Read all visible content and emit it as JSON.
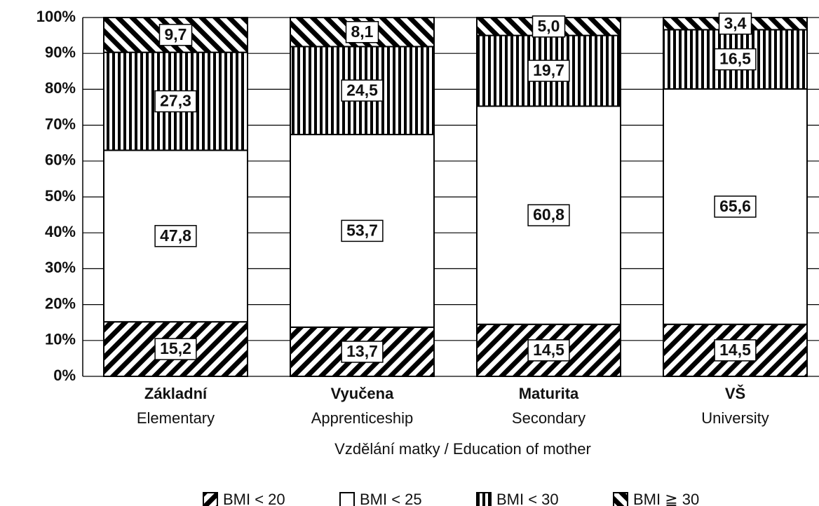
{
  "chart_data": {
    "type": "stacked-bar",
    "x_label": "Vzdělání matky / Education of mother",
    "categories": [
      "Základní",
      "Vyučena",
      "Maturita",
      "VŠ"
    ],
    "category_subtitles": [
      "Elementary",
      "Apprenticeship",
      "Secondary",
      "University"
    ],
    "series": [
      {
        "name": "BMI < 20",
        "pattern": "diagonal-down",
        "color": "#000000",
        "values": [
          15.2,
          13.7,
          14.5,
          14.5
        ],
        "value_labels": [
          "15,2",
          "13,7",
          "14,5",
          "14,5"
        ]
      },
      {
        "name": "BMI < 25",
        "pattern": "none",
        "color": "#ffffff",
        "values": [
          47.8,
          53.7,
          60.8,
          65.6
        ],
        "value_labels": [
          "47,8",
          "53,7",
          "60,8",
          "65,6"
        ]
      },
      {
        "name": "BMI < 30",
        "pattern": "vertical",
        "color": "#000000",
        "values": [
          27.3,
          24.5,
          19.7,
          16.5
        ],
        "value_labels": [
          "27,3",
          "24,5",
          "19,7",
          "16,5"
        ]
      },
      {
        "name": "BMI ≧ 30",
        "pattern": "diagonal-up",
        "color": "#000000",
        "values": [
          9.7,
          8.1,
          5.0,
          3.4
        ],
        "value_labels": [
          "9,7",
          "8,1",
          "5,0",
          "3,4"
        ]
      }
    ],
    "ylim": [
      0,
      100
    ],
    "yticks": [
      {
        "value": 0,
        "label": "0%"
      },
      {
        "value": 10,
        "label": "10%"
      },
      {
        "value": 20,
        "label": "20%"
      },
      {
        "value": 30,
        "label": "30%"
      },
      {
        "value": 40,
        "label": "40%"
      },
      {
        "value": 50,
        "label": "50%"
      },
      {
        "value": 60,
        "label": "60%"
      },
      {
        "value": 70,
        "label": "70%"
      },
      {
        "value": 80,
        "label": "80%"
      },
      {
        "value": 90,
        "label": "90%"
      },
      {
        "value": 100,
        "label": "100%"
      }
    ],
    "grid": true,
    "legend": "bottom"
  }
}
